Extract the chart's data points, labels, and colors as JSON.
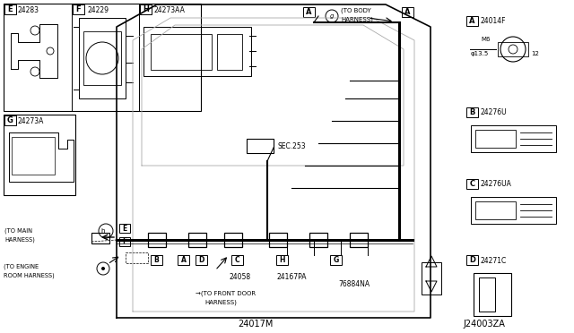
{
  "bg_color": "#ffffff",
  "lc": "#000000",
  "gc": "#aaaaaa",
  "fig_w": 6.4,
  "fig_h": 3.72,
  "xlim": [
    0,
    640
  ],
  "ylim": [
    0,
    372
  ]
}
